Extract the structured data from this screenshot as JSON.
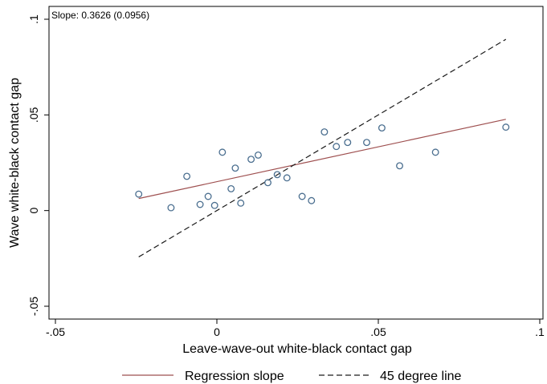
{
  "chart_data": {
    "type": "scatter",
    "annotation": "Slope: 0.3626 (0.0956)",
    "xlabel": "Leave-wave-out white-black contact gap",
    "ylabel": "Wave white-black contact gap",
    "xlim": [
      -0.05,
      0.1
    ],
    "ylim": [
      -0.05,
      0.1
    ],
    "xticks": [
      -0.05,
      0,
      0.05,
      0.1
    ],
    "xtick_labels": [
      "-.05",
      "0",
      ".05",
      ".1"
    ],
    "yticks": [
      -0.05,
      0,
      0.05,
      0.1
    ],
    "ytick_labels": [
      "-.05",
      "0",
      ".05",
      ".1"
    ],
    "grid": false,
    "legend_position": "bottom",
    "points": [
      {
        "x": -0.0242,
        "y": 0.0086
      },
      {
        "x": -0.0142,
        "y": 0.0015
      },
      {
        "x": -0.0093,
        "y": 0.0179
      },
      {
        "x": -0.0052,
        "y": 0.0032
      },
      {
        "x": -0.0027,
        "y": 0.0074
      },
      {
        "x": -0.0007,
        "y": 0.0027
      },
      {
        "x": 0.0017,
        "y": 0.0305
      },
      {
        "x": 0.0044,
        "y": 0.0114
      },
      {
        "x": 0.0057,
        "y": 0.0222
      },
      {
        "x": 0.0074,
        "y": 0.0039
      },
      {
        "x": 0.0106,
        "y": 0.0268
      },
      {
        "x": 0.0128,
        "y": 0.029
      },
      {
        "x": 0.0158,
        "y": 0.0146
      },
      {
        "x": 0.0187,
        "y": 0.0188
      },
      {
        "x": 0.0217,
        "y": 0.0171
      },
      {
        "x": 0.0264,
        "y": 0.0074
      },
      {
        "x": 0.0293,
        "y": 0.0052
      },
      {
        "x": 0.0333,
        "y": 0.0411
      },
      {
        "x": 0.037,
        "y": 0.0335
      },
      {
        "x": 0.0405,
        "y": 0.0356
      },
      {
        "x": 0.0464,
        "y": 0.0356
      },
      {
        "x": 0.0511,
        "y": 0.0432
      },
      {
        "x": 0.0566,
        "y": 0.0234
      },
      {
        "x": 0.0677,
        "y": 0.0305
      },
      {
        "x": 0.0895,
        "y": 0.0436
      }
    ],
    "series": [
      {
        "name": "Regression slope",
        "style": "solid",
        "color": "#9e4f4f",
        "x": [
          -0.0242,
          0.0895
        ],
        "y": [
          0.0063,
          0.0477
        ]
      },
      {
        "name": "45 degree line",
        "style": "dashed",
        "color": "#1a1a1a",
        "x": [
          -0.0242,
          0.0895
        ],
        "y": [
          -0.0242,
          0.0895
        ]
      }
    ],
    "marker_color": "#4a6e8f",
    "axis_color": "#000000"
  }
}
